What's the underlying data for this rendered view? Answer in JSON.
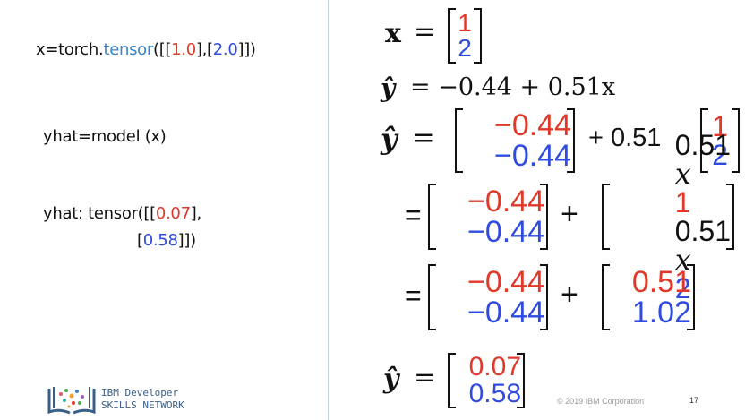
{
  "left": {
    "line1": {
      "a": "x=torch.",
      "b": "tensor",
      "c": "([[",
      "d": "1.0",
      "e": "],[",
      "f": "2.0",
      "g": "]])"
    },
    "line2": "yhat=model (x)",
    "line3": {
      "a": "yhat: tensor([[",
      "b": "0.07",
      "c": "],"
    },
    "line4": {
      "a": "[",
      "b": "0.58",
      "c": "]])"
    }
  },
  "right": {
    "eq1": {
      "lhs": "x",
      "eq": "=",
      "top": "1",
      "bottom": "2"
    },
    "eq2": {
      "lhs": "ŷ",
      "text": "= −0.44 + 0.51x"
    },
    "eq3": {
      "lhs": "ŷ",
      "eq": "=",
      "top": "−0.44",
      "bottom": "−0.44",
      "plus": "+ 0.51",
      "top2": "1",
      "bottom2": "2"
    },
    "eq4": {
      "eq": "=",
      "top": "−0.44",
      "bottom": "−0.44",
      "plus": "+",
      "top2a": "0.51",
      "top2b": "x",
      "top2c": "1",
      "bottom2a": "0.51",
      "bottom2b": "x",
      "bottom2c": "2"
    },
    "eq5": {
      "eq": "=",
      "top": "−0.44",
      "bottom": "−0.44",
      "plus": "+",
      "top2": "0.51",
      "bottom2": "1.02"
    },
    "eq6": {
      "lhs": "ŷ",
      "eq": "=",
      "top": "0.07",
      "bottom": "0.58"
    }
  },
  "footer": {
    "copyright": "© 2019 IBM Corporation",
    "page": "17"
  },
  "logo": {
    "line1": "IBM Developer",
    "line2": "SKILLS NETWORK"
  },
  "colors": {
    "red": "#e0392a",
    "blue": "#2f4be0",
    "tensor": "#3a86c8"
  }
}
